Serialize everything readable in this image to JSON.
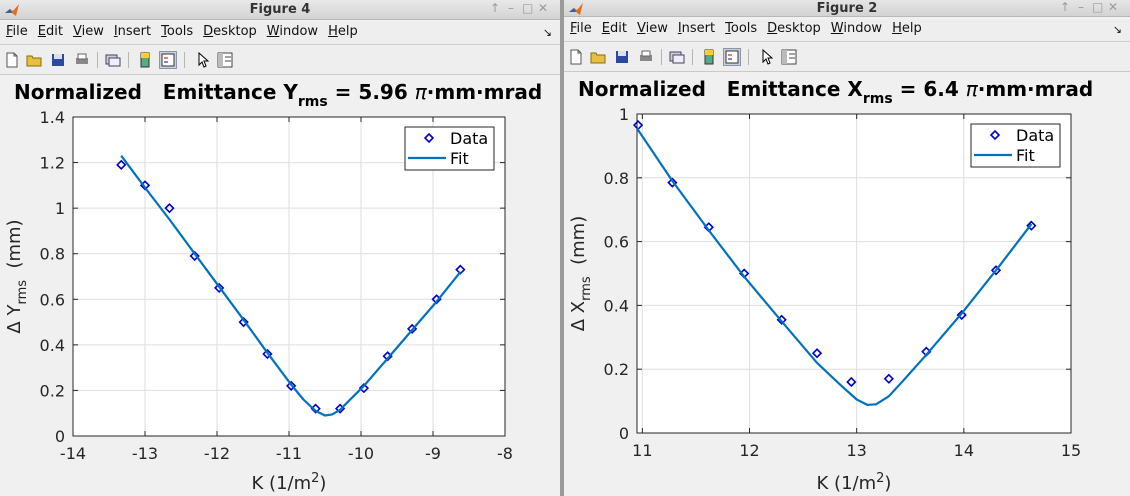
{
  "windows": [
    {
      "title": "Figure 4",
      "menu": [
        {
          "label": "File",
          "u": "F",
          "rest": "ile"
        },
        {
          "label": "Edit",
          "u": "E",
          "rest": "dit"
        },
        {
          "label": "View",
          "u": "V",
          "rest": "iew"
        },
        {
          "label": "Insert",
          "u": "I",
          "rest": "nsert"
        },
        {
          "label": "Tools",
          "u": "T",
          "rest": "ools"
        },
        {
          "label": "Desktop",
          "u": "D",
          "rest": "esktop"
        },
        {
          "label": "Window",
          "u": "W",
          "rest": "indow"
        },
        {
          "label": "Help",
          "u": "H",
          "rest": "elp"
        }
      ]
    },
    {
      "title": "Figure 2",
      "menu": [
        {
          "label": "File",
          "u": "F",
          "rest": "ile"
        },
        {
          "label": "Edit",
          "u": "E",
          "rest": "dit"
        },
        {
          "label": "View",
          "u": "V",
          "rest": "iew"
        },
        {
          "label": "Insert",
          "u": "I",
          "rest": "nsert"
        },
        {
          "label": "Tools",
          "u": "T",
          "rest": "ools"
        },
        {
          "label": "Desktop",
          "u": "D",
          "rest": "esktop"
        },
        {
          "label": "Window",
          "u": "W",
          "rest": "indow"
        },
        {
          "label": "Help",
          "u": "H",
          "rest": "elp"
        }
      ]
    }
  ],
  "colors": {
    "marker": "#0000cc",
    "fit": "#0072bd",
    "grid": "#dedede",
    "axes": "#262626"
  },
  "chart_data": [
    {
      "type": "scatter",
      "title": {
        "prefix": "Normalized   Emittance Y",
        "sub": "rms",
        "suffix": " = 5.96 ",
        "pi": "π",
        "unit": "·mm·mrad"
      },
      "xlabel": {
        "main": "K (1/m",
        "sup": "2",
        "end": ")"
      },
      "ylabel": {
        "delta": "Δ Y",
        "sub": "rms",
        "end": "  (mm)"
      },
      "xlim": [
        -14,
        -8
      ],
      "ylim": [
        0,
        1.4
      ],
      "xticks": [
        -14,
        -13,
        -12,
        -11,
        -10,
        -9,
        -8
      ],
      "xtick_labels": [
        "-14",
        "-13",
        "-12",
        "-11",
        "-10",
        "-9",
        "-8"
      ],
      "yticks": [
        0,
        0.2,
        0.4,
        0.6,
        0.8,
        1,
        1.2,
        1.4
      ],
      "ytick_labels": [
        "0",
        "0.2",
        "0.4",
        "0.6",
        "0.8",
        "1",
        "1.2",
        "1.4"
      ],
      "grid": true,
      "legend": {
        "position": "top-right",
        "entries": [
          "Data",
          "Fit"
        ]
      },
      "series": [
        {
          "name": "Data",
          "kind": "markers",
          "x": [
            -13.33,
            -13,
            -12.66,
            -12.31,
            -11.97,
            -11.63,
            -11.3,
            -10.97,
            -10.63,
            -10.29,
            -9.96,
            -9.63,
            -9.29,
            -8.95,
            -8.62
          ],
          "y": [
            1.19,
            1.1,
            1.0,
            0.79,
            0.65,
            0.5,
            0.36,
            0.22,
            0.12,
            0.12,
            0.21,
            0.35,
            0.47,
            0.6,
            0.73
          ]
        },
        {
          "name": "Fit",
          "kind": "line",
          "x": [
            -13.33,
            -13.0,
            -12.66,
            -12.31,
            -11.97,
            -11.63,
            -11.3,
            -10.97,
            -10.8,
            -10.63,
            -10.5,
            -10.4,
            -10.29,
            -10.15,
            -9.96,
            -9.63,
            -9.29,
            -8.95,
            -8.62
          ],
          "y": [
            1.23,
            1.09,
            0.95,
            0.8,
            0.655,
            0.51,
            0.365,
            0.225,
            0.16,
            0.11,
            0.09,
            0.095,
            0.115,
            0.16,
            0.22,
            0.34,
            0.465,
            0.59,
            0.72
          ]
        }
      ]
    },
    {
      "type": "scatter",
      "title": {
        "prefix": "Normalized   Emittance X",
        "sub": "rms",
        "suffix": " = 6.4 ",
        "pi": "π",
        "unit": "·mm·mrad"
      },
      "xlabel": {
        "main": "K (1/m",
        "sup": "2",
        "end": ")"
      },
      "ylabel": {
        "delta": "Δ X",
        "sub": "rms",
        "end": "  (mm)"
      },
      "xlim": [
        10.95,
        15
      ],
      "ylim": [
        0,
        1
      ],
      "xticks": [
        11,
        12,
        13,
        14,
        15
      ],
      "xtick_labels": [
        "11",
        "12",
        "13",
        "14",
        "15"
      ],
      "yticks": [
        0,
        0.2,
        0.4,
        0.6,
        0.8,
        1
      ],
      "ytick_labels": [
        "0",
        "0.2",
        "0.4",
        "0.6",
        "0.8",
        "1"
      ],
      "grid": true,
      "legend": {
        "position": "top-right",
        "entries": [
          "Data",
          "Fit"
        ]
      },
      "series": [
        {
          "name": "Data",
          "kind": "markers",
          "x": [
            10.96,
            11.28,
            11.62,
            11.95,
            12.3,
            12.63,
            12.95,
            13.3,
            13.65,
            13.98,
            14.3,
            14.63
          ],
          "y": [
            0.965,
            0.785,
            0.645,
            0.5,
            0.355,
            0.25,
            0.16,
            0.17,
            0.255,
            0.37,
            0.51,
            0.65
          ]
        },
        {
          "name": "Fit",
          "kind": "line",
          "x": [
            10.95,
            11.28,
            11.62,
            11.95,
            12.3,
            12.63,
            12.85,
            13.0,
            13.1,
            13.18,
            13.3,
            13.45,
            13.65,
            13.98,
            14.3,
            14.63
          ],
          "y": [
            0.955,
            0.79,
            0.635,
            0.49,
            0.35,
            0.22,
            0.15,
            0.105,
            0.088,
            0.09,
            0.115,
            0.17,
            0.245,
            0.375,
            0.51,
            0.655
          ]
        }
      ]
    }
  ]
}
